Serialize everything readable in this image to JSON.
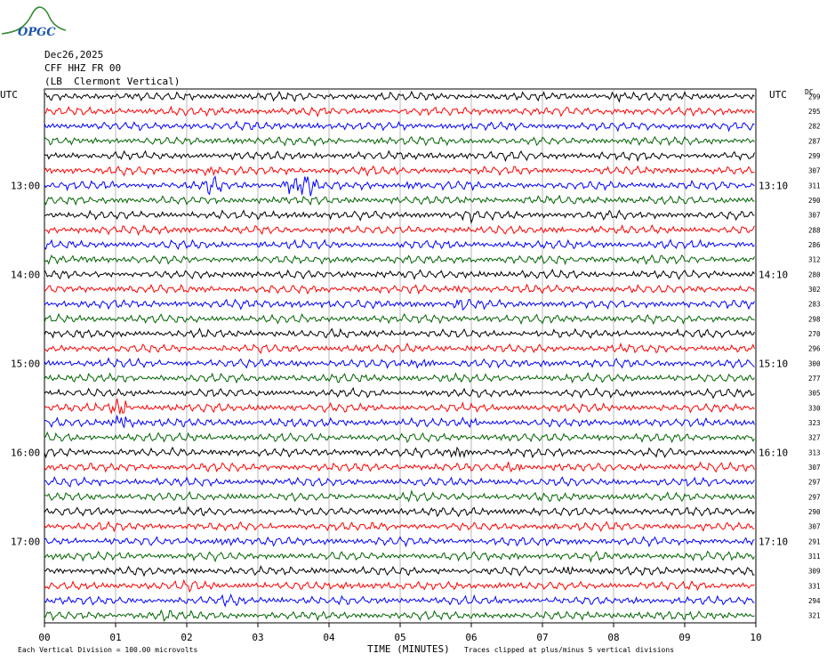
{
  "logo_text": "OPGC",
  "header": {
    "date": "Dec26,2025",
    "station": "CFF HHZ FR 00",
    "location": "(LB  Clermont Vertical)"
  },
  "left_axis_label": "UTC",
  "right_axis_label": "UTC",
  "dc_label": "DC",
  "footer": {
    "vertical_division": "Each Vertical Division =  100.00 microvolts",
    "xlabel": "TIME (MINUTES)",
    "clip_note": "Traces clipped at plus/minus 5 vertical divisions"
  },
  "colors": {
    "trace_cycle": [
      "#000000",
      "#ff0000",
      "#0000ff",
      "#006400"
    ],
    "grid": "#888888"
  },
  "chart_data": {
    "type": "line",
    "title": "",
    "xlabel": "TIME (MINUTES)",
    "ylabel": "",
    "xlim": [
      0,
      10
    ],
    "x_ticks": [
      "00",
      "01",
      "02",
      "03",
      "04",
      "05",
      "06",
      "07",
      "08",
      "09",
      "10"
    ],
    "left_time_labels": [
      "13:00",
      "14:00",
      "15:00",
      "16:00",
      "17:00"
    ],
    "right_time_labels": [
      "13:10",
      "14:10",
      "15:10",
      "16:10",
      "17:10"
    ],
    "lines_per_hour": 6,
    "first_line_offset": 6,
    "dc_offsets": [
      299,
      295,
      282,
      287,
      299,
      307,
      311,
      290,
      307,
      288,
      286,
      312,
      280,
      302,
      283,
      298,
      270,
      296,
      300,
      277,
      305,
      330,
      323,
      327,
      313,
      307,
      297,
      297,
      290,
      307,
      291,
      311,
      309,
      331,
      294,
      321
    ],
    "events": [
      {
        "line": 0,
        "minute": 8.05,
        "amp": 1.4
      },
      {
        "line": 5,
        "minute": 2.3,
        "amp": 1.5
      },
      {
        "line": 6,
        "minute": 2.35,
        "amp": 2.0
      },
      {
        "line": 6,
        "minute": 3.45,
        "amp": 2.0
      },
      {
        "line": 6,
        "minute": 3.7,
        "amp": 2.5
      },
      {
        "line": 6,
        "minute": 5.15,
        "amp": 1.3
      },
      {
        "line": 8,
        "minute": 6.0,
        "amp": 1.3
      },
      {
        "line": 13,
        "minute": 5.85,
        "amp": 1.4
      },
      {
        "line": 14,
        "minute": 3.6,
        "amp": 1.2
      },
      {
        "line": 14,
        "minute": 5.85,
        "amp": 1.5
      },
      {
        "line": 18,
        "minute": 5.3,
        "amp": 1.3
      },
      {
        "line": 21,
        "minute": 1.05,
        "amp": 2.2
      },
      {
        "line": 22,
        "minute": 1.1,
        "amp": 2.8
      },
      {
        "line": 22,
        "minute": 6.0,
        "amp": 1.6
      },
      {
        "line": 24,
        "minute": 5.85,
        "amp": 1.6
      },
      {
        "line": 25,
        "minute": 6.6,
        "amp": 1.5
      },
      {
        "line": 27,
        "minute": 5.1,
        "amp": 1.3
      },
      {
        "line": 30,
        "minute": 2.6,
        "amp": 1.3
      },
      {
        "line": 32,
        "minute": 7.4,
        "amp": 1.4
      },
      {
        "line": 33,
        "minute": 2.1,
        "amp": 1.3
      },
      {
        "line": 34,
        "minute": 2.6,
        "amp": 1.4
      },
      {
        "line": 35,
        "minute": 1.7,
        "amp": 1.3
      }
    ]
  }
}
